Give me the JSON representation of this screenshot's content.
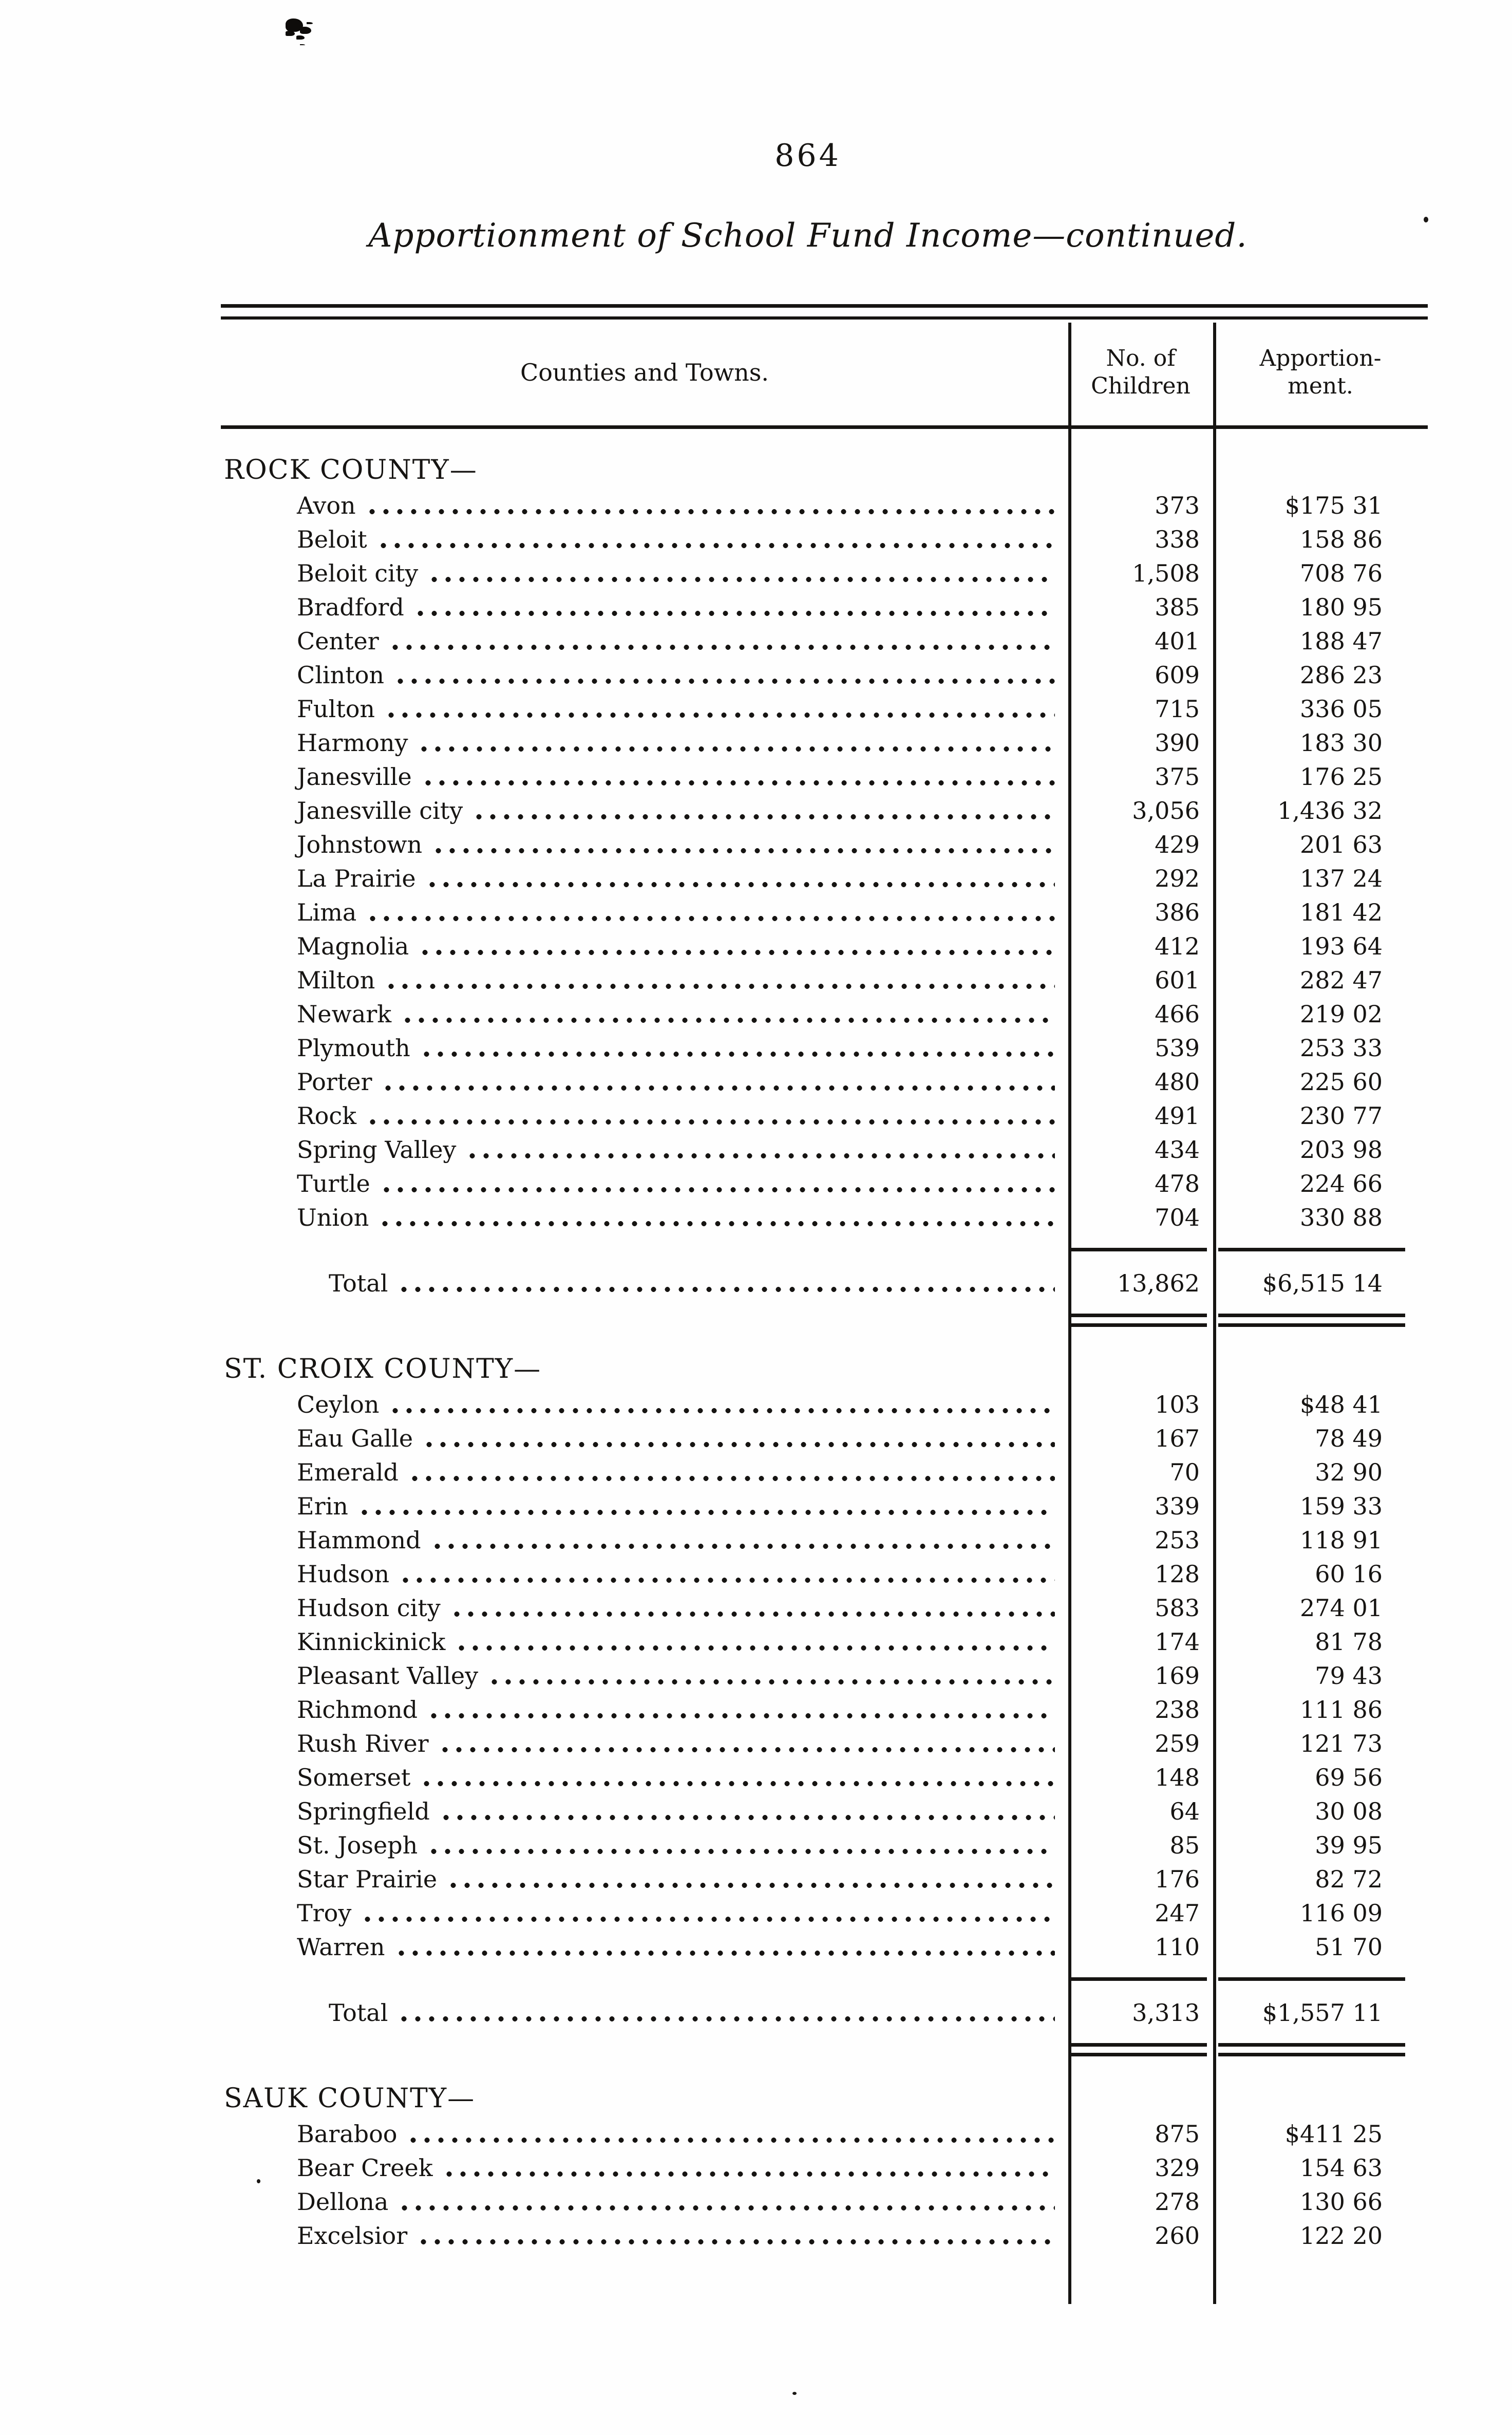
{
  "page": {
    "number": "864",
    "title": "Apportionment of School Fund Income—continued."
  },
  "table": {
    "header": {
      "col1": "Counties and Towns.",
      "col2_line1": "No. of",
      "col2_line2": "Children",
      "col3_line1": "Apportion-",
      "col3_line2": "ment."
    },
    "sections": [
      {
        "county": "ROCK COUNTY—",
        "rows": [
          {
            "town": "Avon",
            "children": "373",
            "amount": "$175 31"
          },
          {
            "town": "Beloit",
            "children": "338",
            "amount": "158 86"
          },
          {
            "town": "Beloit city",
            "children": "1,508",
            "amount": "708 76"
          },
          {
            "town": "Bradford",
            "children": "385",
            "amount": "180 95"
          },
          {
            "town": "Center",
            "children": "401",
            "amount": "188 47"
          },
          {
            "town": "Clinton",
            "children": "609",
            "amount": "286 23"
          },
          {
            "town": "Fulton",
            "children": "715",
            "amount": "336 05"
          },
          {
            "town": "Harmony",
            "children": "390",
            "amount": "183 30"
          },
          {
            "town": "Janesville",
            "children": "375",
            "amount": "176 25"
          },
          {
            "town": "Janesville city",
            "children": "3,056",
            "amount": "1,436 32"
          },
          {
            "town": "Johnstown",
            "children": "429",
            "amount": "201 63"
          },
          {
            "town": "La Prairie",
            "children": "292",
            "amount": "137 24"
          },
          {
            "town": "Lima",
            "children": "386",
            "amount": "181 42"
          },
          {
            "town": "Magnolia",
            "children": "412",
            "amount": "193 64"
          },
          {
            "town": "Milton",
            "children": "601",
            "amount": "282 47"
          },
          {
            "town": "Newark",
            "children": "466",
            "amount": "219 02"
          },
          {
            "town": "Plymouth",
            "children": "539",
            "amount": "253 33"
          },
          {
            "town": "Porter",
            "children": "480",
            "amount": "225 60"
          },
          {
            "town": "Rock",
            "children": "491",
            "amount": "230 77"
          },
          {
            "town": "Spring Valley",
            "children": "434",
            "amount": "203 98"
          },
          {
            "town": "Turtle",
            "children": "478",
            "amount": "224 66"
          },
          {
            "town": "Union",
            "children": "704",
            "amount": "330 88"
          }
        ],
        "total": {
          "label": "Total",
          "children": "13,862",
          "amount": "$6,515 14"
        }
      },
      {
        "county": "ST. CROIX COUNTY—",
        "rows": [
          {
            "town": "Ceylon",
            "children": "103",
            "amount": "$48 41"
          },
          {
            "town": "Eau Galle",
            "children": "167",
            "amount": "78 49"
          },
          {
            "town": "Emerald",
            "children": "70",
            "amount": "32 90"
          },
          {
            "town": "Erin",
            "children": "339",
            "amount": "159 33"
          },
          {
            "town": "Hammond",
            "children": "253",
            "amount": "118 91"
          },
          {
            "town": "Hudson",
            "children": "128",
            "amount": "60 16"
          },
          {
            "town": "Hudson city",
            "children": "583",
            "amount": "274 01"
          },
          {
            "town": "Kinnickinick",
            "children": "174",
            "amount": "81 78"
          },
          {
            "town": "Pleasant Valley",
            "children": "169",
            "amount": "79 43"
          },
          {
            "town": "Richmond",
            "children": "238",
            "amount": "111 86"
          },
          {
            "town": "Rush River",
            "children": "259",
            "amount": "121 73"
          },
          {
            "town": "Somerset",
            "children": "148",
            "amount": "69 56"
          },
          {
            "town": "Springfield",
            "children": "64",
            "amount": "30 08"
          },
          {
            "town": "St. Joseph",
            "children": "85",
            "amount": "39 95"
          },
          {
            "town": "Star Prairie",
            "children": "176",
            "amount": "82 72"
          },
          {
            "town": "Troy",
            "children": "247",
            "amount": "116 09"
          },
          {
            "town": "Warren",
            "children": "110",
            "amount": "51 70"
          }
        ],
        "total": {
          "label": "Total",
          "children": "3,313",
          "amount": "$1,557 11"
        }
      },
      {
        "county": "SAUK COUNTY—",
        "rows": [
          {
            "town": "Baraboo",
            "children": "875",
            "amount": "$411 25"
          },
          {
            "town": "Bear Creek",
            "children": "329",
            "amount": "154 63"
          },
          {
            "town": "Dellona",
            "children": "278",
            "amount": "130 66"
          },
          {
            "town": "Excelsior",
            "children": "260",
            "amount": "122 20"
          }
        ],
        "total": null
      }
    ]
  }
}
